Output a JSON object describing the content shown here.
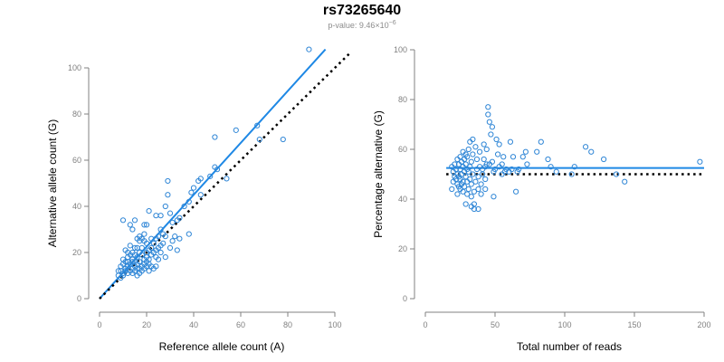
{
  "title": "rs73265640",
  "subtitle": {
    "prefix": "p-value: ",
    "mantissa": "9.46",
    "times": "×10",
    "exponent": "−6"
  },
  "colors": {
    "points": "#2f86d6",
    "fit_line": "#1e88e5",
    "reference_line": "#000000",
    "axis": "#808080",
    "tick_label": "#808080",
    "axis_label": "#000000"
  },
  "chart_data": [
    {
      "type": "scatter",
      "xlabel": "Reference allele count (A)",
      "ylabel": "Alternative allele count (G)",
      "xlim": [
        0,
        100
      ],
      "ylim": [
        0,
        100
      ],
      "xticks": [
        0,
        20,
        40,
        60,
        80,
        100
      ],
      "yticks": [
        0,
        20,
        40,
        60,
        80,
        100
      ],
      "grid": false,
      "lines": [
        {
          "style": "solid",
          "color": "#1e88e5",
          "x": [
            0,
            96
          ],
          "y": [
            0,
            108
          ]
        },
        {
          "style": "dotted",
          "color": "#000000",
          "x": [
            0,
            107
          ],
          "y": [
            0,
            107
          ]
        }
      ],
      "points": [
        [
          89,
          108
        ],
        [
          58,
          73
        ],
        [
          49,
          70
        ],
        [
          67,
          75
        ],
        [
          68,
          69
        ],
        [
          78,
          69
        ],
        [
          54,
          52
        ],
        [
          50,
          56
        ],
        [
          49,
          57
        ],
        [
          42,
          51
        ],
        [
          43,
          52
        ],
        [
          40,
          48
        ],
        [
          39,
          46
        ],
        [
          43,
          45
        ],
        [
          47,
          53
        ],
        [
          38,
          42
        ],
        [
          36,
          40
        ],
        [
          38,
          28
        ],
        [
          34,
          35
        ],
        [
          33,
          34
        ],
        [
          31,
          33
        ],
        [
          28,
          40
        ],
        [
          29,
          45
        ],
        [
          29,
          51
        ],
        [
          30,
          37
        ],
        [
          26,
          36
        ],
        [
          24,
          36
        ],
        [
          26,
          30
        ],
        [
          27,
          28
        ],
        [
          28,
          27
        ],
        [
          25,
          27
        ],
        [
          24,
          26
        ],
        [
          23,
          24
        ],
        [
          22,
          22
        ],
        [
          21,
          21
        ],
        [
          20,
          20
        ],
        [
          19,
          25
        ],
        [
          18,
          22
        ],
        [
          20,
          18
        ],
        [
          19,
          17
        ],
        [
          18,
          19
        ],
        [
          17,
          20
        ],
        [
          17,
          16
        ],
        [
          16,
          18
        ],
        [
          16,
          15
        ],
        [
          15,
          16
        ],
        [
          15,
          14
        ],
        [
          14,
          17
        ],
        [
          14,
          13
        ],
        [
          13,
          15
        ],
        [
          13,
          12
        ],
        [
          12,
          14
        ],
        [
          12,
          11
        ],
        [
          11,
          13
        ],
        [
          11,
          12
        ],
        [
          10,
          15
        ],
        [
          10,
          10
        ],
        [
          9,
          14
        ],
        [
          9,
          12
        ],
        [
          9,
          9
        ],
        [
          10,
          34
        ],
        [
          13,
          32
        ],
        [
          14,
          30
        ],
        [
          15,
          34
        ],
        [
          19,
          32
        ],
        [
          20,
          32
        ],
        [
          21,
          38
        ],
        [
          17,
          27
        ],
        [
          16,
          26
        ],
        [
          17,
          25
        ],
        [
          18,
          26
        ],
        [
          15,
          22
        ],
        [
          16,
          22
        ],
        [
          14,
          20
        ],
        [
          13,
          19
        ],
        [
          12,
          18
        ],
        [
          12,
          16
        ],
        [
          11,
          16
        ],
        [
          10,
          17
        ],
        [
          10,
          11
        ],
        [
          8,
          10
        ],
        [
          8,
          12
        ],
        [
          14,
          11
        ],
        [
          15,
          12
        ],
        [
          16,
          13
        ],
        [
          17,
          13
        ],
        [
          18,
          14
        ],
        [
          19,
          15
        ],
        [
          20,
          16
        ],
        [
          21,
          17
        ],
        [
          22,
          19
        ],
        [
          23,
          20
        ],
        [
          24,
          21
        ],
        [
          25,
          22
        ],
        [
          26,
          23
        ],
        [
          27,
          24
        ],
        [
          22,
          14
        ],
        [
          25,
          17
        ],
        [
          24,
          18
        ],
        [
          30,
          22
        ],
        [
          31,
          25
        ],
        [
          32,
          27
        ],
        [
          34,
          26
        ],
        [
          33,
          21
        ],
        [
          28,
          18
        ],
        [
          26,
          20
        ],
        [
          21,
          15
        ],
        [
          20,
          14
        ],
        [
          23,
          13
        ],
        [
          18,
          12
        ],
        [
          17,
          11
        ],
        [
          16,
          10
        ],
        [
          14,
          16
        ],
        [
          12,
          20
        ],
        [
          13,
          23
        ],
        [
          15,
          19
        ],
        [
          19,
          13
        ],
        [
          21,
          12
        ],
        [
          24,
          14
        ],
        [
          20,
          24
        ],
        [
          22,
          26
        ],
        [
          19,
          28
        ],
        [
          11,
          21
        ]
      ]
    },
    {
      "type": "scatter",
      "xlabel": "Total number of reads",
      "ylabel": "Percentage alternative (G)",
      "xlim": [
        0,
        200
      ],
      "ylim": [
        0,
        100
      ],
      "xticks": [
        0,
        50,
        100,
        150,
        200
      ],
      "yticks": [
        0,
        20,
        40,
        60,
        80,
        100
      ],
      "grid": false,
      "lines": [
        {
          "style": "solid",
          "color": "#1e88e5",
          "x": [
            15,
            200
          ],
          "y": [
            52.5,
            52.5
          ]
        },
        {
          "style": "dotted",
          "color": "#000000",
          "x": [
            15,
            200
          ],
          "y": [
            50,
            50
          ]
        }
      ],
      "points": [
        [
          197,
          55
        ],
        [
          143,
          47
        ],
        [
          137,
          50
        ],
        [
          128,
          56
        ],
        [
          119,
          59
        ],
        [
          115,
          61
        ],
        [
          105,
          50
        ],
        [
          107,
          53
        ],
        [
          94,
          51
        ],
        [
          90,
          53
        ],
        [
          88,
          56
        ],
        [
          83,
          63
        ],
        [
          80,
          59
        ],
        [
          73,
          54
        ],
        [
          72,
          59
        ],
        [
          67,
          52
        ],
        [
          66,
          51
        ],
        [
          65,
          43
        ],
        [
          63,
          57
        ],
        [
          61,
          63
        ],
        [
          57,
          51
        ],
        [
          56,
          57
        ],
        [
          55,
          54
        ],
        [
          53,
          62
        ],
        [
          52,
          58
        ],
        [
          51,
          64
        ],
        [
          49,
          51
        ],
        [
          49,
          41
        ],
        [
          48,
          69
        ],
        [
          47,
          66
        ],
        [
          46,
          71
        ],
        [
          45,
          74
        ],
        [
          45,
          77
        ],
        [
          44,
          60
        ],
        [
          44,
          54
        ],
        [
          43,
          48
        ],
        [
          43,
          44
        ],
        [
          42,
          62
        ],
        [
          42,
          56
        ],
        [
          41,
          50
        ],
        [
          40,
          46
        ],
        [
          40,
          42
        ],
        [
          39,
          53
        ],
        [
          39,
          59
        ],
        [
          38,
          49
        ],
        [
          38,
          44
        ],
        [
          37,
          52
        ],
        [
          37,
          56
        ],
        [
          36,
          61
        ],
        [
          36,
          47
        ],
        [
          35,
          43
        ],
        [
          35,
          38
        ],
        [
          34,
          64
        ],
        [
          34,
          58
        ],
        [
          34,
          50
        ],
        [
          33,
          55
        ],
        [
          33,
          46
        ],
        [
          33,
          41
        ],
        [
          32,
          63
        ],
        [
          32,
          53
        ],
        [
          32,
          48
        ],
        [
          31,
          60
        ],
        [
          31,
          51
        ],
        [
          31,
          44
        ],
        [
          30,
          57
        ],
        [
          30,
          52
        ],
        [
          30,
          47
        ],
        [
          30,
          42
        ],
        [
          29,
          58
        ],
        [
          29,
          54
        ],
        [
          29,
          49
        ],
        [
          28,
          56
        ],
        [
          28,
          51
        ],
        [
          28,
          45
        ],
        [
          27,
          59
        ],
        [
          27,
          53
        ],
        [
          27,
          47
        ],
        [
          27,
          43
        ],
        [
          26,
          55
        ],
        [
          26,
          50
        ],
        [
          26,
          46
        ],
        [
          25,
          57
        ],
        [
          25,
          52
        ],
        [
          25,
          48
        ],
        [
          25,
          44
        ],
        [
          24,
          54
        ],
        [
          24,
          49
        ],
        [
          24,
          45
        ],
        [
          23,
          56
        ],
        [
          23,
          50
        ],
        [
          23,
          46
        ],
        [
          23,
          42
        ],
        [
          22,
          52
        ],
        [
          22,
          48
        ],
        [
          21,
          54
        ],
        [
          21,
          49
        ],
        [
          20,
          51
        ],
        [
          20,
          47
        ],
        [
          19,
          53
        ],
        [
          19,
          44
        ],
        [
          35,
          36
        ],
        [
          38,
          36
        ],
        [
          33,
          37
        ],
        [
          29,
          38
        ],
        [
          41,
          52
        ],
        [
          43,
          53
        ],
        [
          46,
          54
        ],
        [
          48,
          55
        ],
        [
          50,
          52
        ],
        [
          53,
          53
        ],
        [
          55,
          50
        ],
        [
          58,
          52
        ],
        [
          60,
          51
        ],
        [
          62,
          52
        ],
        [
          70,
          57
        ]
      ]
    }
  ]
}
